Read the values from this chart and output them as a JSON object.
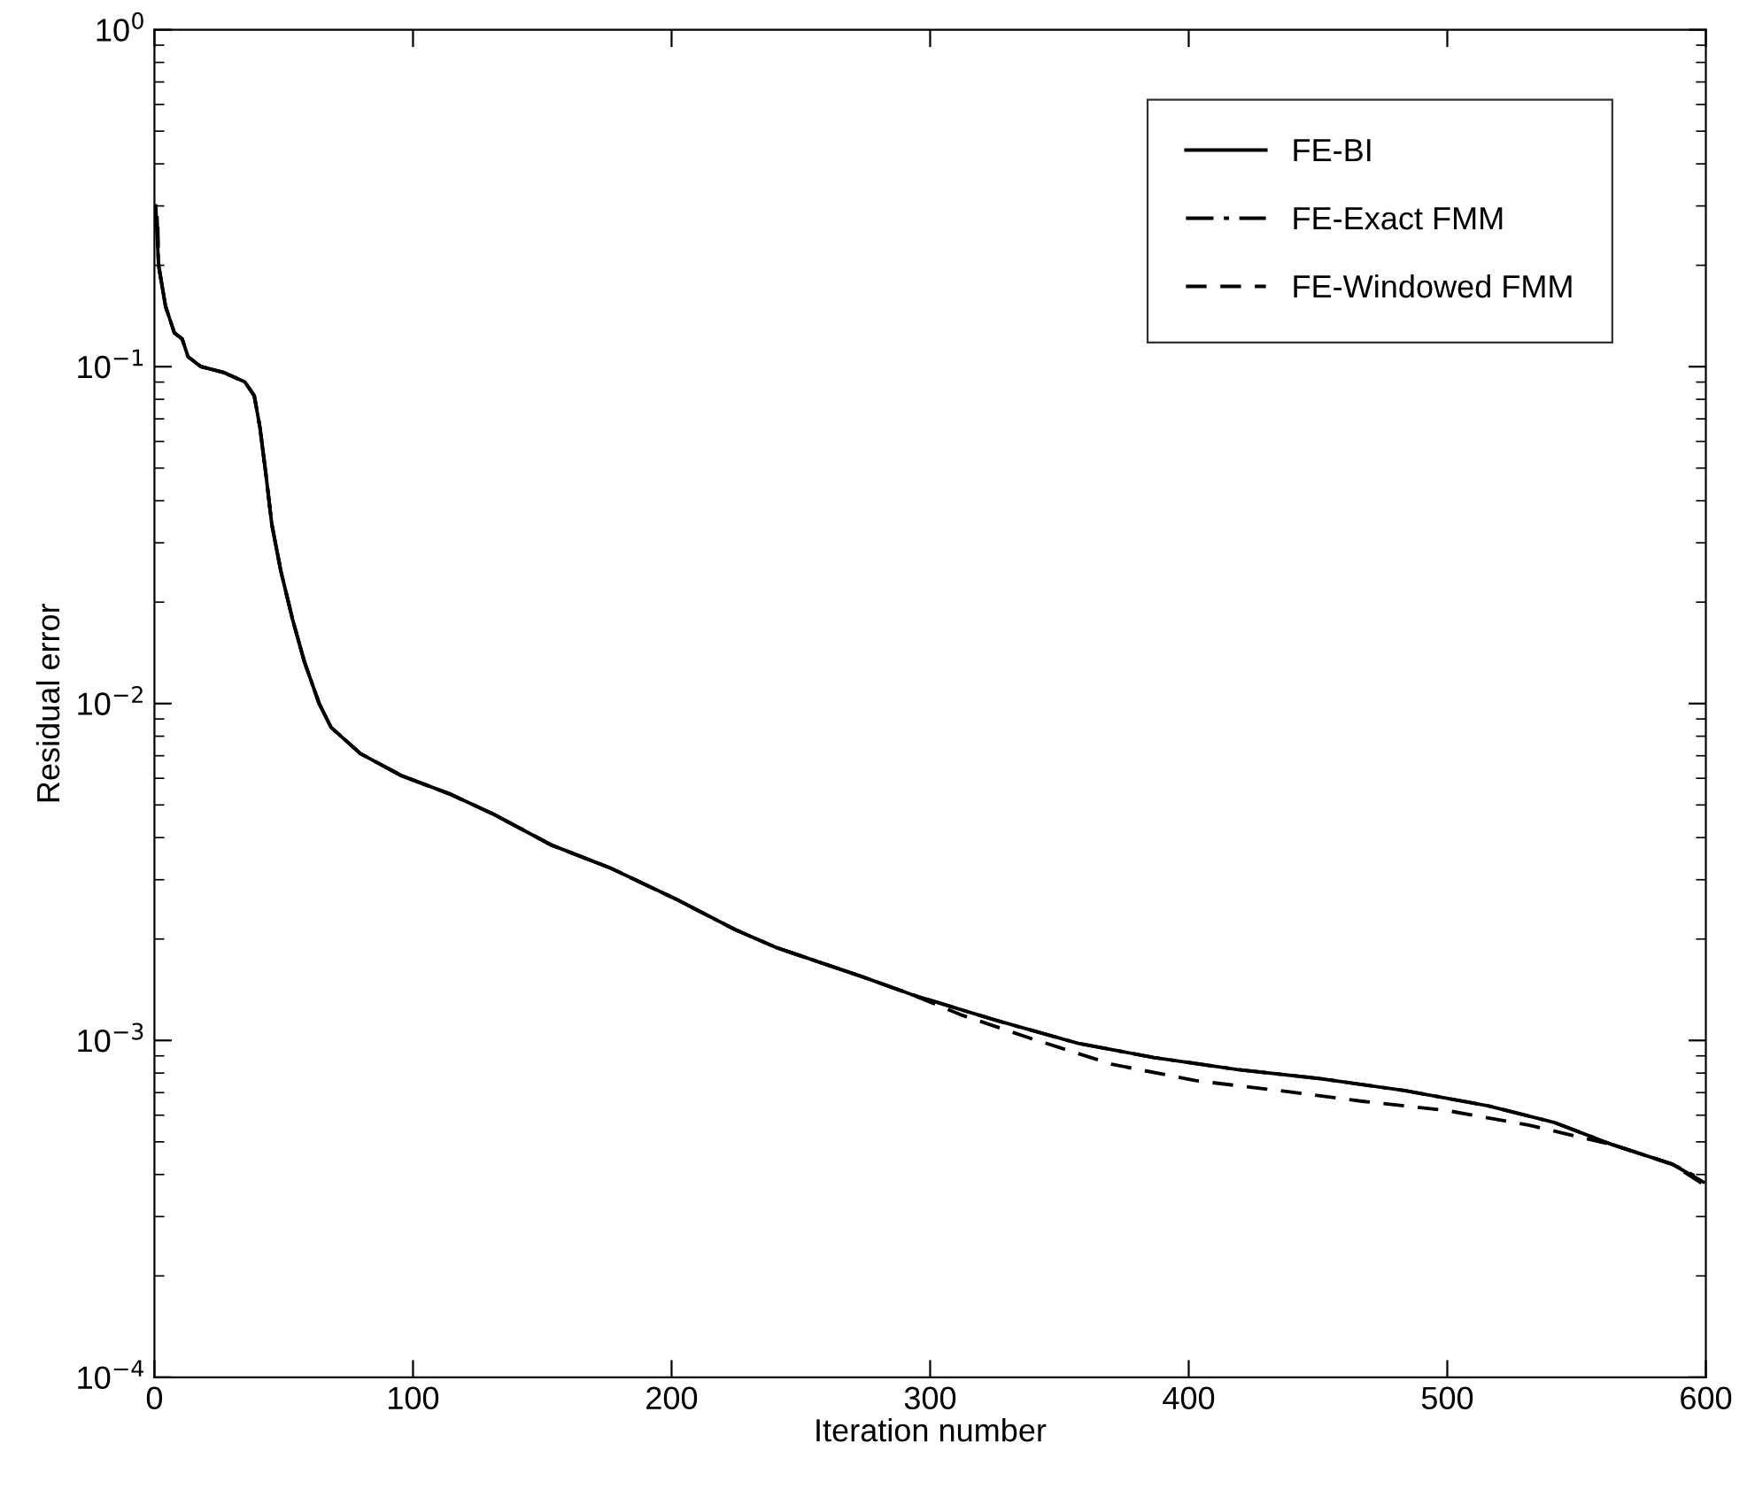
{
  "chart_data": {
    "type": "line",
    "xlabel": "Iteration number",
    "ylabel": "Residual error",
    "log": "y",
    "grid": false,
    "legend": "top right",
    "xlim": [
      0,
      600
    ],
    "xticks": [
      0,
      100,
      200,
      300,
      400,
      500,
      600
    ],
    "ylim": [
      0.0001,
      1
    ],
    "yticks": [
      {
        "value": 0.0001,
        "label": "10$^{−4}$"
      },
      {
        "value": 0.001,
        "label": "10$^{−3}$"
      },
      {
        "value": 0.01,
        "label": "10$^{−2}$"
      },
      {
        "value": 0.1,
        "label": "10$^{−1}$"
      },
      {
        "value": 1,
        "label": "10$^{0}$"
      }
    ],
    "series": [
      {
        "name": "FE-BI",
        "color": "#000000",
        "line_style": "solid",
        "x": [
          0.5,
          1.6,
          4.3,
          7.7,
          10.7,
          13,
          18,
          27,
          35,
          38.6,
          40.8,
          43.1,
          45.4,
          48.9,
          53.4,
          58,
          63.7,
          68.3,
          79.7,
          95.7,
          114,
          131,
          153.6,
          176.3,
          202,
          224.7,
          241,
          273.3,
          292.7,
          325,
          357.3,
          386.5,
          418.7,
          451,
          483.4,
          515.7,
          541.6,
          564,
          586.8,
          599
        ],
        "values": [
          0.3,
          0.2,
          0.151,
          0.126,
          0.121,
          0.107,
          0.1,
          0.096,
          0.09,
          0.082,
          0.066,
          0.048,
          0.034,
          0.0247,
          0.0178,
          0.0133,
          0.01,
          0.0085,
          0.0071,
          0.0061,
          0.0054,
          0.0047,
          0.0038,
          0.00325,
          0.00262,
          0.00213,
          0.00188,
          0.00155,
          0.00137,
          0.00115,
          0.00098,
          0.00089,
          0.00082,
          0.00077,
          0.00071,
          0.00064,
          0.00057,
          0.00049,
          0.00043,
          0.00038
        ]
      },
      {
        "name": "FE-Exact FMM",
        "color": "#000000",
        "line_style": "dashdot",
        "x": [
          1.0,
          1.6,
          4.3,
          7.7,
          10.7,
          13,
          18,
          27,
          35,
          38.6,
          40.8,
          43.1,
          45.4,
          48.9,
          53.4,
          58,
          63.7,
          68.3,
          79.7,
          95.7,
          114,
          131,
          153.6,
          176.3,
          202,
          224.7,
          241,
          273.3,
          292.7,
          325,
          357.3,
          386.5,
          418.7,
          451,
          483.4,
          515.7,
          541.6,
          564,
          586.8,
          597.5
        ],
        "values": [
          0.28,
          0.2,
          0.151,
          0.126,
          0.121,
          0.107,
          0.1,
          0.096,
          0.09,
          0.082,
          0.066,
          0.048,
          0.034,
          0.0247,
          0.0178,
          0.0133,
          0.01,
          0.0085,
          0.0071,
          0.0061,
          0.0054,
          0.0047,
          0.0038,
          0.00325,
          0.00262,
          0.00213,
          0.00188,
          0.00155,
          0.00137,
          0.00115,
          0.00098,
          0.00089,
          0.00082,
          0.00077,
          0.00071,
          0.00064,
          0.00057,
          0.00049,
          0.00043,
          0.00039
        ]
      },
      {
        "name": "FE-Windowed FMM",
        "color": "#000000",
        "line_style": "dashed",
        "x": [
          1.3,
          1.6,
          4.3,
          7.7,
          10.7,
          13,
          18,
          27,
          35,
          38.6,
          40.8,
          43.1,
          45.4,
          48.9,
          53.4,
          58,
          63.7,
          68.3,
          79.7,
          95.7,
          114,
          131,
          153.6,
          176.3,
          202,
          224.7,
          241,
          273.3,
          292.7,
          312.1,
          337.9,
          370.2,
          402.6,
          434.9,
          467,
          499.5,
          531.8,
          564,
          586.8,
          600
        ],
        "values": [
          0.26,
          0.2,
          0.151,
          0.126,
          0.121,
          0.107,
          0.1,
          0.096,
          0.09,
          0.082,
          0.066,
          0.048,
          0.034,
          0.0247,
          0.0178,
          0.0133,
          0.01,
          0.0085,
          0.0071,
          0.0061,
          0.0054,
          0.0047,
          0.0038,
          0.00325,
          0.00262,
          0.00213,
          0.00188,
          0.00155,
          0.00137,
          0.00119,
          0.00102,
          0.00085,
          0.00076,
          0.00071,
          0.00066,
          0.00062,
          0.00056,
          0.00049,
          0.00043,
          0.00037
        ]
      }
    ]
  }
}
